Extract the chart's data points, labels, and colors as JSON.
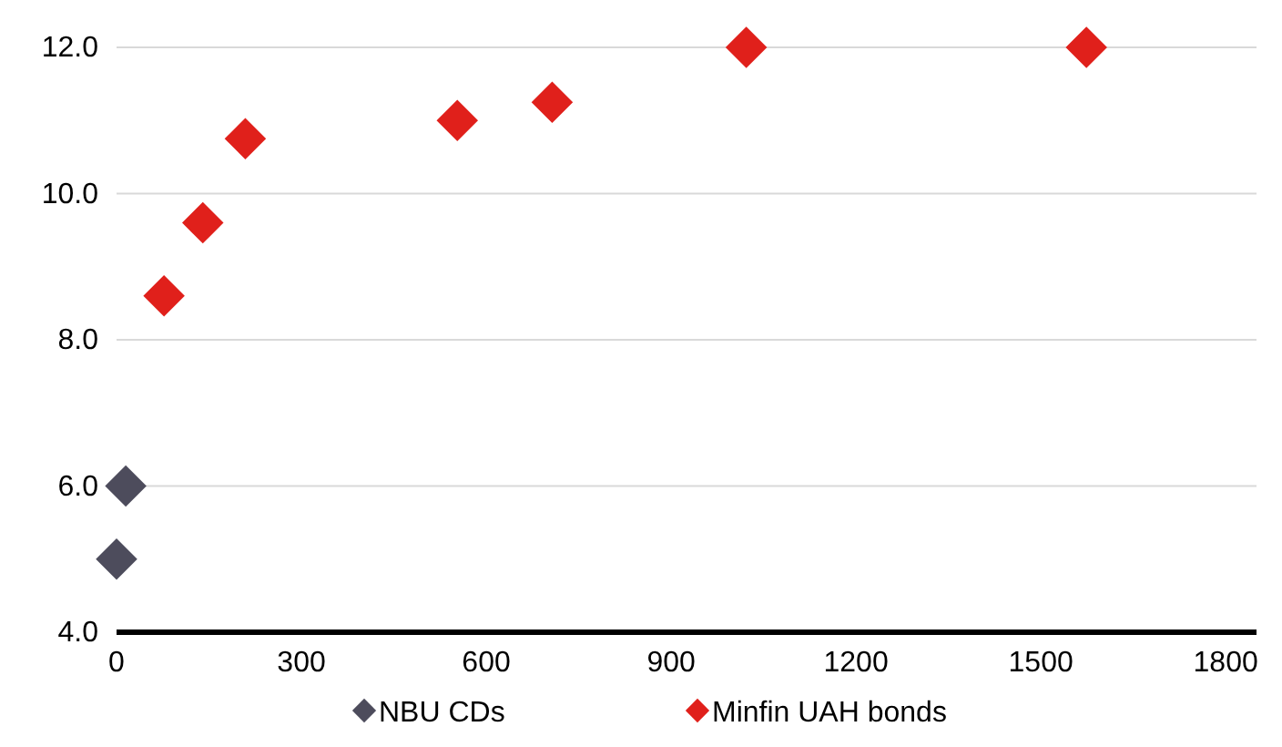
{
  "chart_data": {
    "type": "scatter",
    "xlim": [
      0,
      1850
    ],
    "xticks": [
      0,
      300,
      600,
      900,
      1200,
      1500,
      1800
    ],
    "ylim": [
      4,
      12
    ],
    "yticks": [
      {
        "value": 4,
        "label": "4.0"
      },
      {
        "value": 6,
        "label": "6.0"
      },
      {
        "value": 8,
        "label": "8.0"
      },
      {
        "value": 10,
        "label": "10.0"
      },
      {
        "value": 12,
        "label": "12.0"
      }
    ],
    "grid": "y",
    "legend": "bottom",
    "marker": "diamond",
    "series": [
      {
        "name": "NBU CDs",
        "color": "#4d4c5c",
        "x": [
          0,
          15
        ],
        "values": [
          5.0,
          6.0
        ]
      },
      {
        "name": "Minfin UAH bonds",
        "color": "#e0201b",
        "x": [
          77,
          140,
          209,
          553,
          707,
          1022,
          1574
        ],
        "values": [
          8.6,
          9.6,
          10.75,
          11.0,
          11.25,
          12.0,
          12.0
        ]
      }
    ]
  }
}
